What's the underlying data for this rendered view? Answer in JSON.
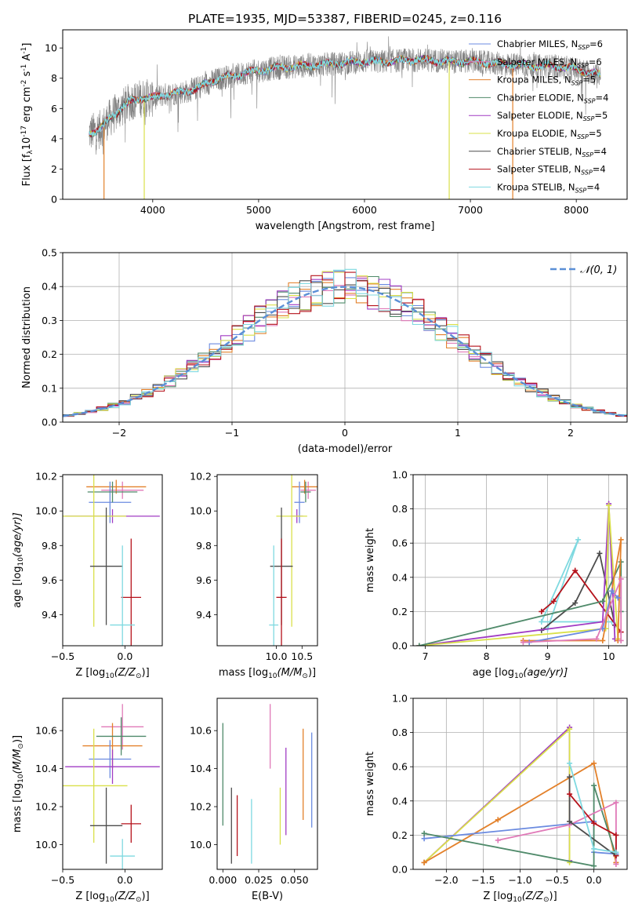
{
  "figure_title": "PLATE=1935, MJD=53387, FIBERID=0245, z=0.116",
  "chart_data": [
    {
      "id": "spectrum",
      "type": "line",
      "xlabel": "wavelength [Angstrom, rest frame]",
      "ylabel": "Flux [f",
      "ylabel_sub": "λ",
      "ylabel_rest": "10",
      "ylabel_sup": "-17",
      "ylabel_units": " erg cm",
      "ylabel_sup2": "-2",
      "ylabel_mid": " s",
      "ylabel_sup3": "-1",
      "ylabel_end": " A",
      "ylabel_sup4": "-1",
      "ylabel_close": "]",
      "xlim": [
        3150,
        8480
      ],
      "ylim": [
        0,
        11.2
      ],
      "xticks": [
        4000,
        5000,
        6000,
        7000,
        8000
      ],
      "yticks": [
        0,
        2,
        4,
        6,
        8,
        10
      ],
      "grid": false,
      "legend_position": "top-right",
      "legend": [
        {
          "pre": "Chabrier MILES, N",
          "sub": "SSP",
          "post": "=6",
          "color": "#6b8be0"
        },
        {
          "pre": "Salpeter MILES, N",
          "sub": "SSP",
          "post": "=6",
          "color": "#e07ab8"
        },
        {
          "pre": "Kroupa MILES, N",
          "sub": "SSP",
          "post": "=5",
          "color": "#e3812b"
        },
        {
          "pre": "Chabrier ELODIE, N",
          "sub": "SSP",
          "post": "=4",
          "color": "#4f8a6a"
        },
        {
          "pre": "Salpeter ELODIE, N",
          "sub": "SSP",
          "post": "=5",
          "color": "#a03cc4"
        },
        {
          "pre": "Kroupa ELODIE, N",
          "sub": "SSP",
          "post": "=5",
          "color": "#d9e04a"
        },
        {
          "pre": "Chabrier STELIB, N",
          "sub": "SSP",
          "post": "=4",
          "color": "#4d4d4d"
        },
        {
          "pre": "Salpeter STELIB, N",
          "sub": "SSP",
          "post": "=4",
          "color": "#b5121b"
        },
        {
          "pre": "Kroupa STELIB, N",
          "sub": "SSP",
          "post": "=4",
          "color": "#7fd9e0"
        }
      ],
      "spectrum_color": "#808080",
      "model_color": "#7fd9e0",
      "continuum": [
        [
          3400,
          4.4
        ],
        [
          3500,
          4.6
        ],
        [
          3600,
          5.4
        ],
        [
          3700,
          6.0
        ],
        [
          3800,
          6.5
        ],
        [
          3900,
          6.7
        ],
        [
          4000,
          6.7
        ],
        [
          4100,
          6.9
        ],
        [
          4200,
          7.0
        ],
        [
          4300,
          7.1
        ],
        [
          4400,
          7.3
        ],
        [
          4500,
          7.6
        ],
        [
          4600,
          7.9
        ],
        [
          4700,
          8.1
        ],
        [
          4800,
          8.2
        ],
        [
          4900,
          8.4
        ],
        [
          5000,
          8.5
        ],
        [
          5200,
          8.7
        ],
        [
          5400,
          8.8
        ],
        [
          5600,
          8.9
        ],
        [
          5800,
          9.0
        ],
        [
          6000,
          9.1
        ],
        [
          6200,
          9.1
        ],
        [
          6400,
          9.2
        ],
        [
          6600,
          9.2
        ],
        [
          6800,
          9.1
        ],
        [
          7000,
          9.1
        ],
        [
          7200,
          9.0
        ],
        [
          7400,
          8.9
        ],
        [
          7600,
          8.8
        ],
        [
          7800,
          8.8
        ],
        [
          8000,
          8.6
        ],
        [
          8230,
          8.2
        ]
      ],
      "drop_lines": [
        {
          "x": 3920,
          "color": "#d9e04a"
        },
        {
          "x": 6800,
          "color": "#d9e04a"
        },
        {
          "x": 7400,
          "color": "#e3812b"
        },
        {
          "x": 3540,
          "color": "#e3812b"
        }
      ]
    },
    {
      "id": "residuals",
      "type": "histogram",
      "xlabel": "(data-model)/error",
      "ylabel": "Normed distribution",
      "xlim": [
        -2.5,
        2.5
      ],
      "ylim": [
        0,
        0.5
      ],
      "xticks": [
        -2,
        -1,
        0,
        1,
        2
      ],
      "yticks": [
        0.0,
        0.1,
        0.2,
        0.3,
        0.4,
        0.5
      ],
      "grid": true,
      "legend_position": "top-right",
      "gaussian_label": "𝒩(0, 1)",
      "gaussian_color": "#5b8fd6",
      "bin_width": 0.1
    },
    {
      "id": "age-vs-Z",
      "type": "errorbar",
      "xlabel_pre": "Z [log",
      "xlabel_sub": "10",
      "xlabel_post": "(Z/Z",
      "xlabel_sub2": "⊙",
      "xlabel_close": ")]",
      "ylabel_pre": "age  [log",
      "ylabel_sub": "10",
      "ylabel_post": "(age/yr)]",
      "xlim": [
        -0.5,
        0.3
      ],
      "ylim": [
        9.22,
        10.21
      ],
      "xticks": [
        -0.5,
        0.0
      ],
      "yticks": [
        9.4,
        9.6,
        9.8,
        10.0,
        10.2
      ],
      "points": [
        {
          "x": -0.02,
          "y": 10.12,
          "xerr": 0.17,
          "yerr": 0.05,
          "color": "#e07ab8"
        },
        {
          "x": -0.07,
          "y": 10.14,
          "xerr": 0.24,
          "yerr": 0.04,
          "color": "#e3812b"
        },
        {
          "x": -0.12,
          "y": 10.05,
          "xerr": 0.17,
          "yerr": 0.12,
          "color": "#6b8be0"
        },
        {
          "x": -0.1,
          "y": 10.11,
          "xerr": 0.2,
          "yerr": 0.06,
          "color": "#4f8a6a"
        },
        {
          "x": -0.1,
          "y": 9.97,
          "xerr": 0.38,
          "yerr": 0.04,
          "color": "#a03cc4"
        },
        {
          "x": -0.25,
          "y": 9.97,
          "xerr": 0.26,
          "yerr": 0.64,
          "color": "#d9e04a"
        },
        {
          "x": -0.15,
          "y": 9.68,
          "xerr": 0.13,
          "yerr": 0.34,
          "color": "#4d4d4d"
        },
        {
          "x": 0.05,
          "y": 9.5,
          "xerr": 0.08,
          "yerr": 0.34,
          "color": "#b5121b"
        },
        {
          "x": -0.02,
          "y": 9.34,
          "xerr": 0.1,
          "yerr": 0.46,
          "color": "#7fd9e0"
        }
      ]
    },
    {
      "id": "age-vs-mass",
      "type": "errorbar",
      "xlabel_pre": "mass [log",
      "xlabel_sub": "10",
      "xlabel_post": "(M/M",
      "xlabel_sub2": "⊙",
      "xlabel_close": ")]",
      "ylabel": "",
      "xlim": [
        8.85,
        10.8
      ],
      "ylim": [
        9.22,
        10.21
      ],
      "xticks": [
        10.0,
        10.5
      ],
      "yticks": [
        9.4,
        9.6,
        9.8,
        10.0,
        10.2
      ],
      "points": [
        {
          "x": 10.62,
          "y": 10.12,
          "xerr": 0.15,
          "yerr": 0.05,
          "color": "#e07ab8"
        },
        {
          "x": 10.55,
          "y": 10.14,
          "xerr": 0.25,
          "yerr": 0.04,
          "color": "#e3812b"
        },
        {
          "x": 10.45,
          "y": 10.05,
          "xerr": 0.1,
          "yerr": 0.12,
          "color": "#6b8be0"
        },
        {
          "x": 10.57,
          "y": 10.11,
          "xerr": 0.1,
          "yerr": 0.06,
          "color": "#4f8a6a"
        },
        {
          "x": 10.4,
          "y": 9.97,
          "xerr": 0.12,
          "yerr": 0.04,
          "color": "#a03cc4"
        },
        {
          "x": 10.3,
          "y": 9.97,
          "xerr": 0.3,
          "yerr": 0.64,
          "color": "#d9e04a"
        },
        {
          "x": 10.1,
          "y": 9.68,
          "xerr": 0.22,
          "yerr": 0.34,
          "color": "#4d4d4d"
        },
        {
          "x": 10.1,
          "y": 9.5,
          "xerr": 0.1,
          "yerr": 0.34,
          "color": "#b5121b"
        },
        {
          "x": 9.95,
          "y": 9.34,
          "xerr": 0.09,
          "yerr": 0.46,
          "color": "#7fd9e0"
        }
      ]
    },
    {
      "id": "mass-weight-vs-age",
      "type": "line",
      "xlabel_pre": "age  [log",
      "xlabel_sub": "10",
      "xlabel_post": "(age/yr)]",
      "ylabel": "mass weight",
      "xlim": [
        6.8,
        10.3
      ],
      "ylim": [
        0,
        1.0
      ],
      "xticks": [
        7,
        8,
        9,
        10
      ],
      "yticks": [
        0.0,
        0.2,
        0.4,
        0.6,
        0.8,
        1.0
      ],
      "grid": true,
      "series": [
        {
          "color": "#7fd9e0",
          "points": [
            [
              9.0,
              0.1
            ],
            [
              9.5,
              0.62
            ],
            [
              8.9,
              0.14
            ],
            [
              10.05,
              0.14
            ]
          ]
        },
        {
          "color": "#4d4d4d",
          "points": [
            [
              8.9,
              0.09
            ],
            [
              9.45,
              0.25
            ],
            [
              9.85,
              0.54
            ],
            [
              10.1,
              0.12
            ]
          ]
        },
        {
          "color": "#b5121b",
          "points": [
            [
              8.9,
              0.2
            ],
            [
              9.1,
              0.26
            ],
            [
              9.45,
              0.44
            ],
            [
              10.2,
              0.08
            ]
          ]
        },
        {
          "color": "#a03cc4",
          "points": [
            [
              6.9,
              0.0
            ],
            [
              9.9,
              0.14
            ],
            [
              10.0,
              0.83
            ],
            [
              10.1,
              0.04
            ]
          ]
        },
        {
          "color": "#d9e04a",
          "points": [
            [
              6.9,
              0.0
            ],
            [
              9.95,
              0.1
            ],
            [
              10.0,
              0.82
            ],
            [
              10.15,
              0.04
            ]
          ]
        },
        {
          "color": "#4f8a6a",
          "points": [
            [
              6.9,
              0.0
            ],
            [
              9.9,
              0.26
            ],
            [
              10.2,
              0.49
            ],
            [
              10.2,
              0.2
            ]
          ]
        },
        {
          "color": "#e3812b",
          "points": [
            [
              8.6,
              0.03
            ],
            [
              9.9,
              0.03
            ],
            [
              10.2,
              0.62
            ],
            [
              10.15,
              0.03
            ]
          ]
        },
        {
          "color": "#6b8be0",
          "points": [
            [
              8.7,
              0.02
            ],
            [
              9.9,
              0.1
            ],
            [
              10.05,
              0.32
            ],
            [
              10.15,
              0.28
            ]
          ]
        },
        {
          "color": "#e07ab8",
          "points": [
            [
              8.6,
              0.02
            ],
            [
              9.8,
              0.04
            ],
            [
              10.2,
              0.39
            ],
            [
              10.2,
              0.03
            ]
          ]
        }
      ]
    },
    {
      "id": "mass-vs-Z",
      "type": "errorbar",
      "xlabel_pre": "Z [log",
      "xlabel_sub": "10",
      "xlabel_post": "(Z/Z",
      "xlabel_sub2": "⊙",
      "xlabel_close": ")]",
      "ylabel_pre": "mass [log",
      "ylabel_sub": "10",
      "ylabel_post": "(M/M",
      "ylabel_sub2": "⊙",
      "ylabel_close": ")]",
      "xlim": [
        -0.5,
        0.3
      ],
      "ylim": [
        9.87,
        10.77
      ],
      "xticks": [
        -0.5,
        0.0
      ],
      "yticks": [
        10.0,
        10.2,
        10.4,
        10.6
      ],
      "points": [
        {
          "x": -0.02,
          "y": 10.62,
          "xerr": 0.17,
          "yerr": 0.12,
          "color": "#e07ab8"
        },
        {
          "x": -0.1,
          "y": 10.52,
          "xerr": 0.24,
          "yerr": 0.12,
          "color": "#e3812b"
        },
        {
          "x": -0.12,
          "y": 10.45,
          "xerr": 0.17,
          "yerr": 0.1,
          "color": "#6b8be0"
        },
        {
          "x": -0.03,
          "y": 10.57,
          "xerr": 0.2,
          "yerr": 0.1,
          "color": "#4f8a6a"
        },
        {
          "x": -0.1,
          "y": 10.41,
          "xerr": 0.38,
          "yerr": 0.09,
          "color": "#a03cc4"
        },
        {
          "x": -0.25,
          "y": 10.31,
          "xerr": 0.27,
          "yerr": 0.3,
          "color": "#d9e04a"
        },
        {
          "x": -0.15,
          "y": 10.1,
          "xerr": 0.13,
          "yerr": 0.2,
          "color": "#4d4d4d"
        },
        {
          "x": 0.05,
          "y": 10.11,
          "xerr": 0.08,
          "yerr": 0.1,
          "color": "#b5121b"
        },
        {
          "x": -0.02,
          "y": 9.94,
          "xerr": 0.1,
          "yerr": 0.09,
          "color": "#7fd9e0"
        }
      ]
    },
    {
      "id": "mass-vs-ebv",
      "type": "errorbar",
      "xlabel": "E(B-V)",
      "ylabel": "",
      "xlim": [
        -0.004,
        0.066
      ],
      "ylim": [
        9.87,
        10.77
      ],
      "xticks": [
        0.0,
        0.025,
        0.05
      ],
      "xtick_labels": [
        "0.000",
        "0.025",
        "0.050"
      ],
      "yticks": [
        10.0,
        10.2,
        10.4,
        10.6
      ],
      "points": [
        {
          "x": 0.033,
          "y": 10.57,
          "xerr": 0,
          "yerr": 0.17,
          "color": "#e07ab8"
        },
        {
          "x": 0.056,
          "y": 10.37,
          "xerr": 0,
          "yerr": 0.24,
          "color": "#e3812b"
        },
        {
          "x": 0.062,
          "y": 10.34,
          "xerr": 0,
          "yerr": 0.25,
          "color": "#6b8be0"
        },
        {
          "x": 0.0,
          "y": 10.37,
          "xerr": 0,
          "yerr": 0.27,
          "color": "#4f8a6a"
        },
        {
          "x": 0.044,
          "y": 10.28,
          "xerr": 0,
          "yerr": 0.23,
          "color": "#a03cc4"
        },
        {
          "x": 0.04,
          "y": 10.15,
          "xerr": 0,
          "yerr": 0.15,
          "color": "#d9e04a"
        },
        {
          "x": 0.006,
          "y": 10.1,
          "xerr": 0,
          "yerr": 0.2,
          "color": "#4d4d4d"
        },
        {
          "x": 0.01,
          "y": 10.1,
          "xerr": 0,
          "yerr": 0.16,
          "color": "#b5121b"
        },
        {
          "x": 0.02,
          "y": 10.07,
          "xerr": 0,
          "yerr": 0.17,
          "color": "#7fd9e0"
        }
      ]
    },
    {
      "id": "mass-weight-vs-Z",
      "type": "line",
      "xlabel_pre": "Z [log",
      "xlabel_sub": "10",
      "xlabel_post": "(Z/Z",
      "xlabel_sub2": "⊙",
      "xlabel_close": ")]",
      "ylabel": "mass weight",
      "xlim": [
        -2.45,
        0.45
      ],
      "ylim": [
        0,
        1.0
      ],
      "xticks": [
        -2.0,
        -1.5,
        -1.0,
        -0.5,
        0.0
      ],
      "yticks": [
        0.0,
        0.2,
        0.4,
        0.6,
        0.8,
        1.0
      ],
      "grid": true,
      "series": [
        {
          "color": "#a03cc4",
          "points": [
            [
              -2.3,
              0.04
            ],
            [
              -0.33,
              0.83
            ],
            [
              -0.33,
              0.05
            ]
          ]
        },
        {
          "color": "#d9e04a",
          "points": [
            [
              -2.3,
              0.04
            ],
            [
              -0.33,
              0.82
            ],
            [
              -0.33,
              0.04
            ]
          ]
        },
        {
          "color": "#e3812b",
          "points": [
            [
              -2.3,
              0.04
            ],
            [
              -1.3,
              0.29
            ],
            [
              0.0,
              0.62
            ],
            [
              0.3,
              0.04
            ]
          ]
        },
        {
          "color": "#6b8be0",
          "points": [
            [
              -2.3,
              0.18
            ],
            [
              0.0,
              0.28
            ],
            [
              0.0,
              0.1
            ],
            [
              0.3,
              0.09
            ]
          ]
        },
        {
          "color": "#4f8a6a",
          "points": [
            [
              -2.3,
              0.21
            ],
            [
              0.0,
              0.02
            ],
            [
              0.0,
              0.49
            ],
            [
              0.3,
              0.08
            ]
          ]
        },
        {
          "color": "#e07ab8",
          "points": [
            [
              -1.3,
              0.17
            ],
            [
              -0.33,
              0.26
            ],
            [
              0.3,
              0.39
            ],
            [
              0.3,
              0.03
            ]
          ]
        },
        {
          "color": "#4d4d4d",
          "points": [
            [
              -0.33,
              0.54
            ],
            [
              -0.33,
              0.28
            ],
            [
              0.3,
              0.08
            ]
          ]
        },
        {
          "color": "#b5121b",
          "points": [
            [
              -0.33,
              0.44
            ],
            [
              0.0,
              0.27
            ],
            [
              0.3,
              0.2
            ],
            [
              0.3,
              0.08
            ]
          ]
        },
        {
          "color": "#7fd9e0",
          "points": [
            [
              -0.33,
              0.62
            ],
            [
              0.0,
              0.12
            ],
            [
              0.3,
              0.1
            ]
          ]
        }
      ]
    }
  ]
}
